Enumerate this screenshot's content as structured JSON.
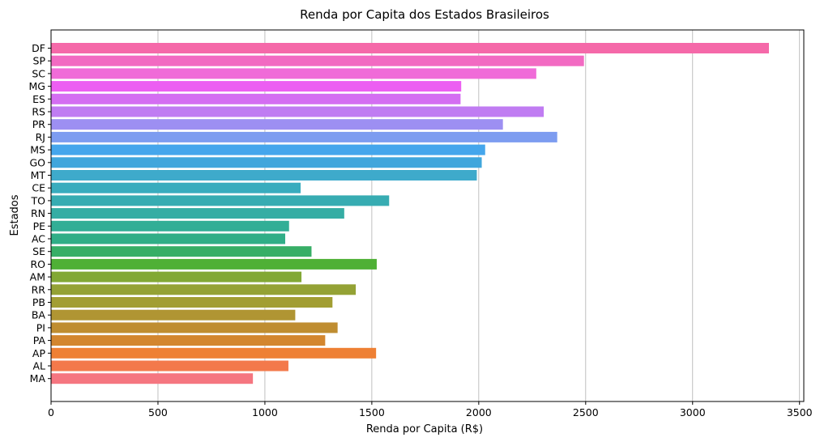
{
  "chart_data": {
    "type": "bar",
    "orientation": "horizontal",
    "title": "Renda por Capita dos Estados Brasileiros",
    "xlabel": "Renda por Capita (R$)",
    "ylabel": "Estados",
    "xlim": [
      0,
      3520
    ],
    "xticks": [
      0,
      500,
      1000,
      1500,
      2000,
      2500,
      3000,
      3500
    ],
    "grid": "x",
    "categories": [
      "DF",
      "SP",
      "SC",
      "MG",
      "ES",
      "RS",
      "PR",
      "RJ",
      "MS",
      "GO",
      "MT",
      "CE",
      "TO",
      "RN",
      "PE",
      "AC",
      "SE",
      "RO",
      "AM",
      "RR",
      "PB",
      "BA",
      "PI",
      "PA",
      "AP",
      "AL",
      "MA"
    ],
    "values": [
      3357,
      2492,
      2269,
      1918,
      1915,
      2304,
      2113,
      2367,
      2030,
      2014,
      1991,
      1167,
      1581,
      1371,
      1113,
      1095,
      1218,
      1523,
      1171,
      1425,
      1316,
      1142,
      1340,
      1282,
      1520,
      1110,
      944
    ],
    "colors": [
      "#f569a9",
      "#f26ac2",
      "#f06bd8",
      "#ec5ff2",
      "#d46ef2",
      "#c07cf2",
      "#9d8ff2",
      "#7d9cf0",
      "#45a6ec",
      "#40a6dc",
      "#3eaacb",
      "#39acbe",
      "#37acb2",
      "#35ada4",
      "#32ae96",
      "#30ae87",
      "#37ae66",
      "#4fb036",
      "#82a835",
      "#94a235",
      "#a29e33",
      "#b09533",
      "#bf8d31",
      "#d3862f",
      "#ee8034",
      "#f3794b",
      "#f57680"
    ]
  }
}
